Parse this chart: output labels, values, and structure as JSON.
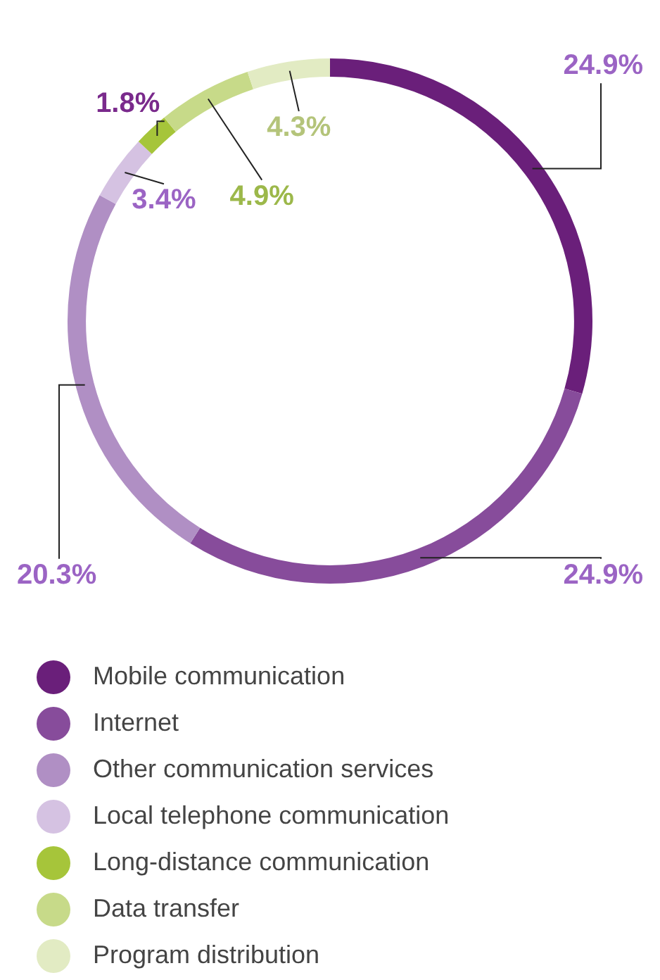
{
  "chart_data": {
    "type": "donut",
    "categories": [
      "Mobile communication",
      "Internet",
      "Other communication services",
      "Local telephone communication",
      "Long-distance communication",
      "Data transfer",
      "Program distribution"
    ],
    "values": [
      24.9,
      24.9,
      20.3,
      3.4,
      1.8,
      4.9,
      4.3
    ],
    "colors": [
      "#6a1f7a",
      "#874c9b",
      "#b08fc4",
      "#d5c2e2",
      "#a6c53a",
      "#c7da89",
      "#e2ebc3"
    ],
    "value_labels": [
      "24.9%",
      "24.9%",
      "20.3%",
      "3.4%",
      "1.8%",
      "4.9%",
      "4.3%"
    ],
    "legend": "bottom"
  }
}
